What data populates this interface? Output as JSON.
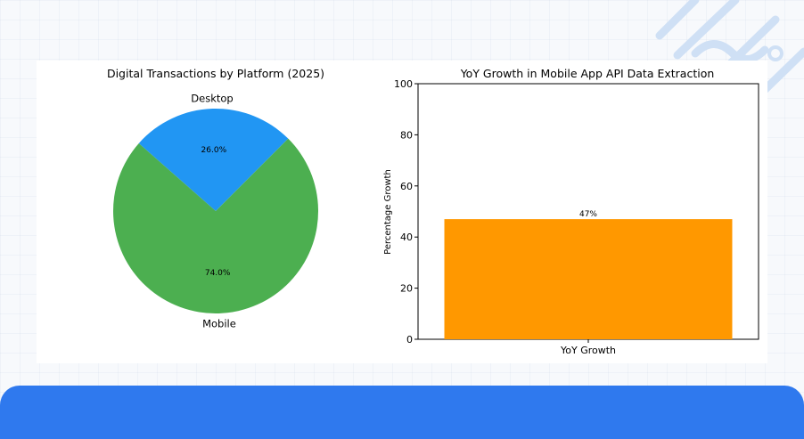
{
  "chart_data": [
    {
      "type": "pie",
      "title": "Digital Transactions by Platform (2025)",
      "slices": [
        {
          "label": "Desktop",
          "value": 26.0,
          "pct_label": "26.0%",
          "color": "#2196f3"
        },
        {
          "label": "Mobile",
          "value": 74.0,
          "pct_label": "74.0%",
          "color": "#4caf50"
        }
      ],
      "start_angle_deg": 45,
      "legend": "none"
    },
    {
      "type": "bar",
      "title": "YoY Growth in Mobile App API Data Extraction",
      "categories": [
        "YoY Growth"
      ],
      "values": [
        47
      ],
      "data_labels": [
        "47%"
      ],
      "ylabel": "Percentage Growth",
      "xlabel": "",
      "ylim": [
        0,
        100
      ],
      "yticks": [
        0,
        20,
        40,
        60,
        80,
        100
      ],
      "ytick_labels": [
        "0",
        "20",
        "40",
        "60",
        "80",
        "100"
      ],
      "bar_color": "#ff9800",
      "grid": false,
      "legend": "none"
    }
  ]
}
